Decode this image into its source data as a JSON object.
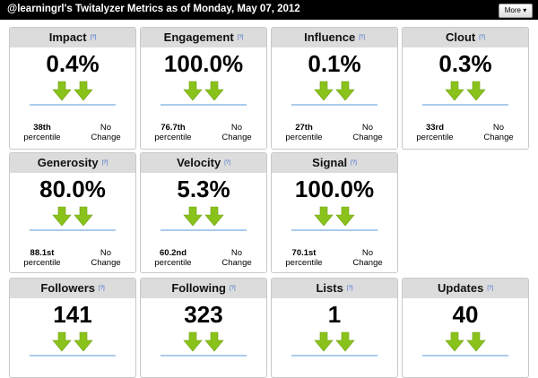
{
  "header": {
    "title": "@learningrl's Twitalyzer Metrics as of Monday, May 07, 2012",
    "button": "More"
  },
  "rows": [
    {
      "cards": [
        {
          "title": "Impact",
          "help": "[?]",
          "value": "0.4%",
          "rank": "38th",
          "rank_label": "percentile",
          "change": "No Change"
        },
        {
          "title": "Engagement",
          "help": "[?]",
          "value": "100.0%",
          "rank": "76.7th",
          "rank_label": "percentile",
          "change": "No Change"
        },
        {
          "title": "Influence",
          "help": "[?]",
          "value": "0.1%",
          "rank": "27th",
          "rank_label": "percentile",
          "change": "No Change"
        },
        {
          "title": "Clout",
          "help": "[?]",
          "value": "0.3%",
          "rank": "33rd",
          "rank_label": "percentile",
          "change": "No Change"
        }
      ]
    },
    {
      "cards": [
        {
          "title": "Generosity",
          "help": "[?]",
          "value": "80.0%",
          "rank": "88.1st",
          "rank_label": "percentile",
          "change": "No Change"
        },
        {
          "title": "Velocity",
          "help": "[?]",
          "value": "5.3%",
          "rank": "60.2nd",
          "rank_label": "percentile",
          "change": "No Change"
        },
        {
          "title": "Signal",
          "help": "[?]",
          "value": "100.0%",
          "rank": "70.1st",
          "rank_label": "percentile",
          "change": "No Change"
        }
      ]
    },
    {
      "cards": [
        {
          "title": "Followers",
          "help": "[?]",
          "value": "141"
        },
        {
          "title": "Following",
          "help": "[?]",
          "value": "323"
        },
        {
          "title": "Lists",
          "help": "[?]",
          "value": "1"
        },
        {
          "title": "Updates",
          "help": "[?]",
          "value": "40"
        }
      ]
    }
  ]
}
